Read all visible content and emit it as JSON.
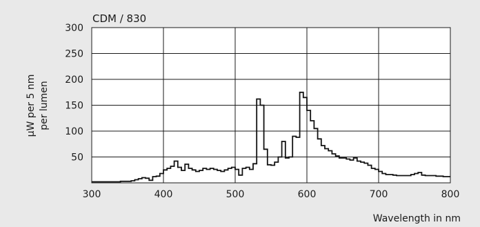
{
  "chart_data": {
    "type": "line",
    "title": "CDM / 830",
    "ylabel_lines": [
      "μW per 5 nm",
      "per lumen"
    ],
    "xlabel": "Wavelength in nm",
    "xlim": [
      300,
      800
    ],
    "ylim": [
      0,
      300
    ],
    "xticks": [
      300,
      400,
      500,
      600,
      700,
      800
    ],
    "yticks": [
      50,
      100,
      150,
      200,
      250,
      300
    ],
    "grid": true,
    "line_color": "#111111",
    "step_width_nm": 5,
    "series": [
      {
        "x": [
          300,
          305,
          310,
          315,
          320,
          325,
          330,
          335,
          340,
          345,
          350,
          355,
          360,
          365,
          370,
          375,
          380,
          385,
          390,
          395,
          400,
          405,
          410,
          415,
          420,
          425,
          430,
          435,
          440,
          445,
          450,
          455,
          460,
          465,
          470,
          475,
          480,
          485,
          490,
          495,
          500,
          505,
          510,
          515,
          520,
          525,
          530,
          535,
          540,
          545,
          550,
          555,
          560,
          565,
          570,
          575,
          580,
          585,
          590,
          595,
          600,
          605,
          610,
          615,
          620,
          625,
          630,
          635,
          640,
          645,
          650,
          655,
          660,
          665,
          670,
          675,
          680,
          685,
          690,
          695,
          700,
          705,
          710,
          715,
          720,
          725,
          730,
          735,
          740,
          745,
          750,
          755,
          760,
          765,
          770,
          775,
          780,
          785,
          790,
          795
        ],
        "y": [
          2,
          2,
          2,
          2,
          2,
          2,
          2,
          2,
          3,
          3,
          3,
          4,
          6,
          8,
          10,
          9,
          5,
          12,
          13,
          18,
          25,
          28,
          32,
          42,
          30,
          24,
          36,
          28,
          25,
          22,
          24,
          28,
          26,
          28,
          26,
          24,
          22,
          25,
          28,
          30,
          26,
          15,
          28,
          30,
          26,
          37,
          162,
          150,
          65,
          35,
          34,
          40,
          50,
          80,
          48,
          50,
          90,
          88,
          175,
          165,
          140,
          120,
          105,
          85,
          72,
          66,
          62,
          56,
          52,
          48,
          48,
          46,
          44,
          48,
          42,
          40,
          38,
          34,
          28,
          26,
          22,
          18,
          16,
          16,
          15,
          14,
          14,
          14,
          14,
          16,
          18,
          20,
          15,
          14,
          14,
          14,
          13,
          13,
          12,
          12
        ]
      }
    ]
  }
}
